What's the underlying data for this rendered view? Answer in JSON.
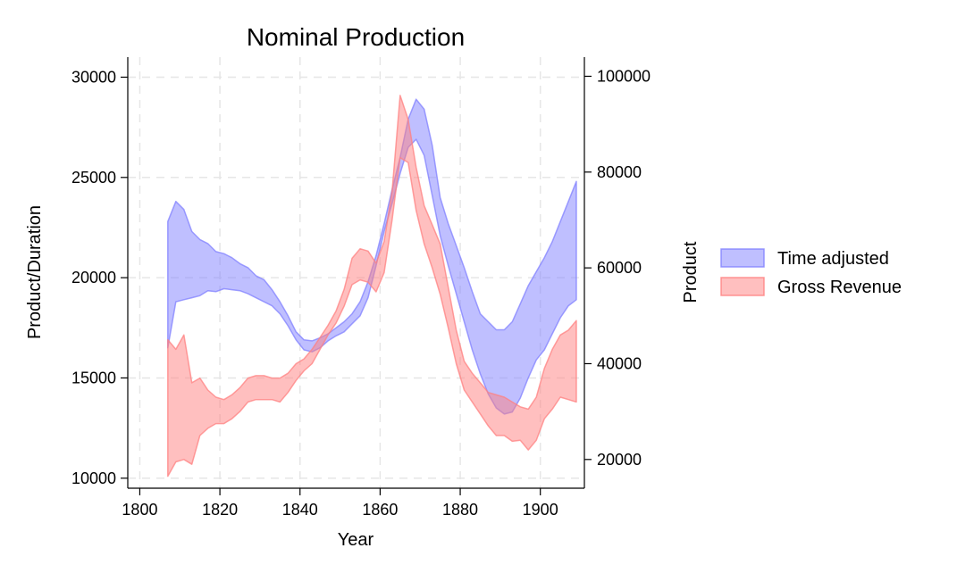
{
  "chart_data": {
    "type": "area",
    "title": "Nominal Production",
    "xlabel": "Year",
    "ylabel_left": "Product/Duration",
    "ylabel_right": "Product",
    "xlim": [
      1797,
      1911
    ],
    "ylim_left": [
      9500,
      31000
    ],
    "ylim_right": [
      14000,
      104000
    ],
    "xticks": [
      1800,
      1820,
      1840,
      1860,
      1880,
      1900
    ],
    "yticks_left": [
      10000,
      15000,
      20000,
      25000,
      30000
    ],
    "yticks_right": [
      20000,
      40000,
      60000,
      80000,
      100000
    ],
    "grid": true,
    "legend_position": "right",
    "series": [
      {
        "name": "Time adjusted",
        "axis": "left",
        "color": "#8080ff",
        "x": [
          1807,
          1809,
          1811,
          1813,
          1815,
          1817,
          1819,
          1821,
          1823,
          1825,
          1827,
          1829,
          1831,
          1833,
          1835,
          1837,
          1839,
          1841,
          1843,
          1845,
          1847,
          1849,
          1851,
          1853,
          1855,
          1857,
          1859,
          1861,
          1863,
          1865,
          1867,
          1869,
          1871,
          1873,
          1875,
          1877,
          1879,
          1881,
          1883,
          1885,
          1887,
          1889,
          1891,
          1893,
          1895,
          1897,
          1899,
          1901,
          1903,
          1905,
          1907,
          1909
        ],
        "lower": [
          16500,
          18800,
          18900,
          19000,
          19100,
          19350,
          19300,
          19450,
          19400,
          19350,
          19200,
          19000,
          18800,
          18600,
          18200,
          17600,
          16900,
          16400,
          16300,
          16500,
          16850,
          17100,
          17300,
          17700,
          18100,
          19000,
          20600,
          22300,
          23700,
          25200,
          26500,
          26900,
          26100,
          24100,
          22100,
          20600,
          19200,
          17800,
          16400,
          15200,
          14200,
          13500,
          13200,
          13300,
          14000,
          15000,
          15900,
          16400,
          17200,
          18000,
          18600,
          18900
        ],
        "upper": [
          22800,
          23800,
          23400,
          22300,
          21900,
          21700,
          21300,
          21200,
          21000,
          20700,
          20500,
          20100,
          19900,
          19400,
          18800,
          18100,
          17300,
          16900,
          16850,
          17000,
          17200,
          17500,
          17800,
          18200,
          18800,
          19800,
          21100,
          22700,
          24400,
          26000,
          27900,
          28900,
          28400,
          26600,
          24000,
          22700,
          21600,
          20500,
          19300,
          18200,
          17800,
          17400,
          17400,
          17800,
          18700,
          19600,
          20300,
          21000,
          21800,
          22800,
          23800,
          24800
        ]
      },
      {
        "name": "Gross Revenue",
        "axis": "right",
        "color": "#ff8080",
        "x": [
          1807,
          1809,
          1811,
          1813,
          1815,
          1817,
          1819,
          1821,
          1823,
          1825,
          1827,
          1829,
          1831,
          1833,
          1835,
          1837,
          1839,
          1841,
          1843,
          1845,
          1847,
          1849,
          1851,
          1853,
          1855,
          1857,
          1859,
          1861,
          1863,
          1865,
          1867,
          1869,
          1871,
          1873,
          1875,
          1877,
          1879,
          1881,
          1883,
          1885,
          1887,
          1889,
          1891,
          1893,
          1895,
          1897,
          1899,
          1901,
          1903,
          1905,
          1907,
          1909
        ],
        "lower": [
          16500,
          19500,
          20000,
          19000,
          25000,
          26500,
          27500,
          27500,
          28500,
          30000,
          32000,
          32500,
          32500,
          32500,
          32000,
          34000,
          36500,
          38500,
          40000,
          43000,
          46000,
          48500,
          52000,
          56500,
          57500,
          57000,
          55000,
          59000,
          70000,
          83000,
          82000,
          72000,
          65000,
          60000,
          54500,
          47500,
          40000,
          34500,
          32000,
          29500,
          27000,
          25000,
          25000,
          23800,
          24000,
          22000,
          24000,
          28500,
          30500,
          33000,
          32500,
          32000
        ],
        "upper": [
          45000,
          43000,
          46000,
          36000,
          37000,
          34500,
          33000,
          32500,
          33500,
          35000,
          37000,
          37500,
          37500,
          37000,
          37000,
          38000,
          40000,
          41000,
          43000,
          45500,
          48000,
          51000,
          55500,
          62000,
          64000,
          63500,
          61000,
          65500,
          76000,
          96000,
          91000,
          81000,
          73000,
          69000,
          65000,
          56000,
          47000,
          40500,
          38000,
          36000,
          34000,
          33500,
          33000,
          32000,
          31000,
          30500,
          33000,
          39000,
          43000,
          46000,
          47000,
          49000
        ]
      }
    ]
  }
}
